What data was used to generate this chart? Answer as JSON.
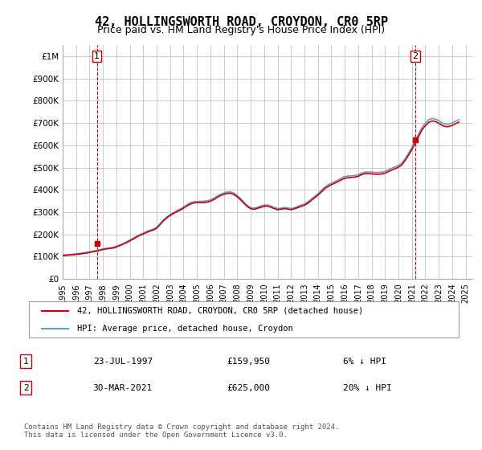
{
  "title": "42, HOLLINGSWORTH ROAD, CROYDON, CR0 5RP",
  "subtitle": "Price paid vs. HM Land Registry's House Price Index (HPI)",
  "title_fontsize": 11,
  "subtitle_fontsize": 9,
  "ylabel_ticks": [
    "£0",
    "£100K",
    "£200K",
    "£300K",
    "£400K",
    "£500K",
    "£600K",
    "£700K",
    "£800K",
    "£900K",
    "£1M"
  ],
  "ytick_vals": [
    0,
    100000,
    200000,
    300000,
    400000,
    500000,
    600000,
    700000,
    800000,
    900000,
    1000000
  ],
  "ylim": [
    0,
    1050000
  ],
  "xlim_start": 1995.0,
  "xlim_end": 2025.5,
  "sale1_year": 1997.55,
  "sale1_price": 159950,
  "sale2_year": 2021.24,
  "sale2_price": 625000,
  "legend_line1": "42, HOLLINGSWORTH ROAD, CROYDON, CR0 5RP (detached house)",
  "legend_line2": "HPI: Average price, detached house, Croydon",
  "annot1_label": "1",
  "annot1_date": "23-JUL-1997",
  "annot1_price": "£159,950",
  "annot1_hpi": "6% ↓ HPI",
  "annot2_label": "2",
  "annot2_date": "30-MAR-2021",
  "annot2_price": "£625,000",
  "annot2_hpi": "20% ↓ HPI",
  "copyright": "Contains HM Land Registry data © Crown copyright and database right 2024.\nThis data is licensed under the Open Government Licence v3.0.",
  "line_red": "#cc0000",
  "line_blue": "#6699cc",
  "bg_color": "#ffffff",
  "grid_color": "#cccccc",
  "hpi_years": [
    1995.0,
    1995.25,
    1995.5,
    1995.75,
    1996.0,
    1996.25,
    1996.5,
    1996.75,
    1997.0,
    1997.25,
    1997.5,
    1997.75,
    1998.0,
    1998.25,
    1998.5,
    1998.75,
    1999.0,
    1999.25,
    1999.5,
    1999.75,
    2000.0,
    2000.25,
    2000.5,
    2000.75,
    2001.0,
    2001.25,
    2001.5,
    2001.75,
    2002.0,
    2002.25,
    2002.5,
    2002.75,
    2003.0,
    2003.25,
    2003.5,
    2003.75,
    2004.0,
    2004.25,
    2004.5,
    2004.75,
    2005.0,
    2005.25,
    2005.5,
    2005.75,
    2006.0,
    2006.25,
    2006.5,
    2006.75,
    2007.0,
    2007.25,
    2007.5,
    2007.75,
    2008.0,
    2008.25,
    2008.5,
    2008.75,
    2009.0,
    2009.25,
    2009.5,
    2009.75,
    2010.0,
    2010.25,
    2010.5,
    2010.75,
    2011.0,
    2011.25,
    2011.5,
    2011.75,
    2012.0,
    2012.25,
    2012.5,
    2012.75,
    2013.0,
    2013.25,
    2013.5,
    2013.75,
    2014.0,
    2014.25,
    2014.5,
    2014.75,
    2015.0,
    2015.25,
    2015.5,
    2015.75,
    2016.0,
    2016.25,
    2016.5,
    2016.75,
    2017.0,
    2017.25,
    2017.5,
    2017.75,
    2018.0,
    2018.25,
    2018.5,
    2018.75,
    2019.0,
    2019.25,
    2019.5,
    2019.75,
    2020.0,
    2020.25,
    2020.5,
    2020.75,
    2021.0,
    2021.25,
    2021.5,
    2021.75,
    2022.0,
    2022.25,
    2022.5,
    2022.75,
    2023.0,
    2023.25,
    2023.5,
    2023.75,
    2024.0,
    2024.25,
    2024.5
  ],
  "hpi_vals": [
    108000,
    109000,
    110500,
    111000,
    113000,
    115000,
    117000,
    119000,
    122000,
    125000,
    128000,
    131000,
    135000,
    138000,
    140000,
    142000,
    147000,
    153000,
    159000,
    167000,
    175000,
    183000,
    192000,
    199000,
    206000,
    213000,
    219000,
    224000,
    232000,
    248000,
    265000,
    278000,
    289000,
    298000,
    307000,
    314000,
    323000,
    333000,
    342000,
    347000,
    348000,
    348000,
    349000,
    351000,
    355000,
    362000,
    372000,
    380000,
    386000,
    390000,
    391000,
    385000,
    375000,
    361000,
    345000,
    330000,
    320000,
    318000,
    322000,
    328000,
    332000,
    332000,
    328000,
    322000,
    316000,
    318000,
    321000,
    319000,
    316000,
    320000,
    326000,
    332000,
    337000,
    346000,
    358000,
    370000,
    382000,
    397000,
    412000,
    422000,
    430000,
    437000,
    444000,
    453000,
    460000,
    462000,
    463000,
    464000,
    468000,
    475000,
    480000,
    480000,
    480000,
    478000,
    478000,
    479000,
    483000,
    490000,
    497000,
    503000,
    510000,
    520000,
    540000,
    565000,
    590000,
    620000,
    650000,
    680000,
    700000,
    715000,
    720000,
    718000,
    710000,
    700000,
    695000,
    695000,
    700000,
    708000,
    715000
  ],
  "red_years": [
    1995.0,
    1995.25,
    1995.5,
    1995.75,
    1996.0,
    1996.25,
    1996.5,
    1996.75,
    1997.0,
    1997.25,
    1997.5,
    1997.75,
    1998.0,
    1998.25,
    1998.5,
    1998.75,
    1999.0,
    1999.25,
    1999.5,
    1999.75,
    2000.0,
    2000.25,
    2000.5,
    2000.75,
    2001.0,
    2001.25,
    2001.5,
    2001.75,
    2002.0,
    2002.25,
    2002.5,
    2002.75,
    2003.0,
    2003.25,
    2003.5,
    2003.75,
    2004.0,
    2004.25,
    2004.5,
    2004.75,
    2005.0,
    2005.25,
    2005.5,
    2005.75,
    2006.0,
    2006.25,
    2006.5,
    2006.75,
    2007.0,
    2007.25,
    2007.5,
    2007.75,
    2008.0,
    2008.25,
    2008.5,
    2008.75,
    2009.0,
    2009.25,
    2009.5,
    2009.75,
    2010.0,
    2010.25,
    2010.5,
    2010.75,
    2011.0,
    2011.25,
    2011.5,
    2011.75,
    2012.0,
    2012.25,
    2012.5,
    2012.75,
    2013.0,
    2013.25,
    2013.5,
    2013.75,
    2014.0,
    2014.25,
    2014.5,
    2014.75,
    2015.0,
    2015.25,
    2015.5,
    2015.75,
    2016.0,
    2016.25,
    2016.5,
    2016.75,
    2017.0,
    2017.25,
    2017.5,
    2017.75,
    2018.0,
    2018.25,
    2018.5,
    2018.75,
    2019.0,
    2019.25,
    2019.5,
    2019.75,
    2020.0,
    2020.25,
    2020.5,
    2020.75,
    2021.0,
    2021.25,
    2021.5,
    2021.75,
    2022.0,
    2022.25,
    2022.5,
    2022.75,
    2023.0,
    2023.25,
    2023.5,
    2023.75,
    2024.0,
    2024.25,
    2024.5
  ],
  "red_vals": [
    105000,
    106000,
    107500,
    108500,
    110000,
    112000,
    114000,
    116000,
    119000,
    122000,
    125000,
    128000,
    132000,
    135000,
    137000,
    139000,
    144000,
    150000,
    156000,
    163000,
    171000,
    179000,
    188000,
    196000,
    202000,
    209000,
    215000,
    220000,
    228000,
    244000,
    261000,
    274000,
    285000,
    294000,
    302000,
    309000,
    318000,
    328000,
    336000,
    341000,
    343000,
    343000,
    343000,
    345000,
    349000,
    356000,
    366000,
    374000,
    380000,
    384000,
    385000,
    379000,
    369000,
    355000,
    339000,
    325000,
    315000,
    313000,
    317000,
    322000,
    326000,
    327000,
    322000,
    316000,
    311000,
    313000,
    316000,
    314000,
    311000,
    315000,
    320000,
    326000,
    331000,
    340000,
    352000,
    364000,
    376000,
    390000,
    405000,
    415000,
    423000,
    430000,
    437000,
    445000,
    452000,
    454000,
    456000,
    457000,
    461000,
    468000,
    473000,
    473000,
    472000,
    470000,
    470000,
    471000,
    475000,
    482000,
    489000,
    495000,
    502000,
    512000,
    532000,
    556000,
    581000,
    611000,
    640000,
    669000,
    688000,
    703000,
    709000,
    707000,
    699000,
    689000,
    684000,
    684000,
    689000,
    697000,
    704000
  ]
}
